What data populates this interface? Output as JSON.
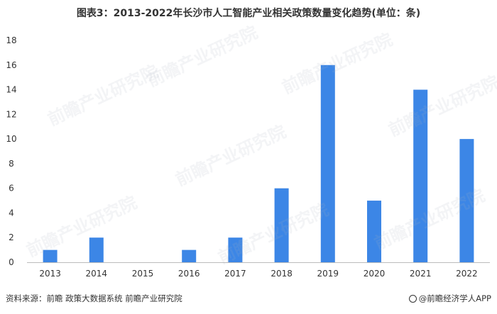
{
  "title": "图表3：2013-2022年长沙市人工智能产业相关政策数量变化趋势(单位：条)",
  "source": "资料来源：前瞻 政策大数据系统 前瞻产业研究院",
  "brand": "@前瞻经济学人APP",
  "watermark": "前瞻产业研究院",
  "colors": {
    "bar": "#3c86e6",
    "axis": "#bbbbbb",
    "tick": "#333333"
  },
  "chart_data": {
    "type": "bar",
    "categories": [
      "2013",
      "2014",
      "2015",
      "2016",
      "2017",
      "2018",
      "2019",
      "2020",
      "2021",
      "2022"
    ],
    "values": [
      1,
      2,
      0,
      1,
      2,
      6,
      16,
      5,
      14,
      10
    ],
    "title": "",
    "xlabel": "",
    "ylabel": "",
    "ylim": [
      0,
      18
    ],
    "yticks": [
      0,
      2,
      4,
      6,
      8,
      10,
      12,
      14,
      16,
      18
    ],
    "grid": false,
    "legend": "none"
  }
}
